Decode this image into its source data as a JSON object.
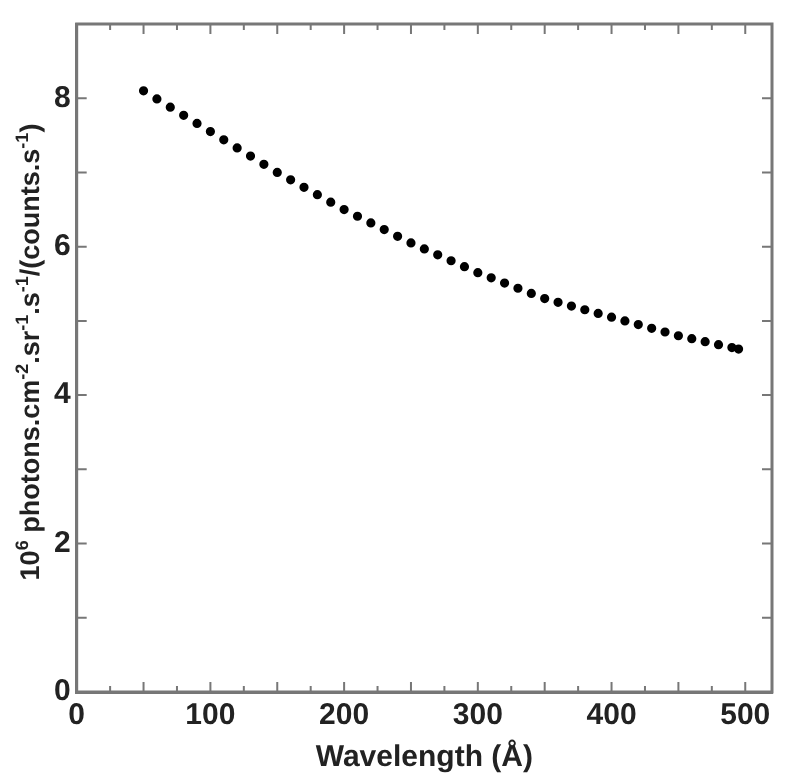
{
  "chart_data": {
    "type": "scatter",
    "xlabel": "Wavelength (Å)",
    "ylabel": "10$^{6}$ photons.cm$^{-2}$.sr$^{-1}$.s$^{-1}$/(counts.s$^{-1}$)",
    "x": [
      50,
      60,
      70,
      80,
      90,
      100,
      110,
      120,
      130,
      140,
      150,
      160,
      170,
      180,
      190,
      200,
      210,
      220,
      230,
      240,
      250,
      260,
      270,
      280,
      290,
      300,
      310,
      320,
      330,
      340,
      350,
      360,
      370,
      380,
      390,
      400,
      410,
      420,
      430,
      440,
      450,
      460,
      470,
      480,
      490,
      495
    ],
    "series": [
      {
        "color": "#000000",
        "values": [
          8.1,
          7.99,
          7.88,
          7.77,
          7.66,
          7.55,
          7.44,
          7.33,
          7.22,
          7.11,
          7.0,
          6.9,
          6.8,
          6.7,
          6.6,
          6.5,
          6.41,
          6.32,
          6.23,
          6.14,
          6.05,
          5.97,
          5.89,
          5.81,
          5.73,
          5.65,
          5.58,
          5.51,
          5.44,
          5.37,
          5.3,
          5.25,
          5.2,
          5.15,
          5.1,
          5.05,
          5.0,
          4.95,
          4.9,
          4.85,
          4.8,
          4.76,
          4.72,
          4.68,
          4.64,
          4.62
        ]
      }
    ],
    "marker": "circle",
    "grid": false,
    "legend": false,
    "xlim": [
      0,
      520
    ],
    "xticks": [
      0,
      {
        "value": 50,
        "label": null
      },
      100,
      {
        "value": 150,
        "label": null
      },
      200,
      {
        "value": 250,
        "label": null
      },
      300,
      {
        "value": 350,
        "label": null
      },
      400,
      {
        "value": 450,
        "label": null
      },
      500
    ],
    "ylim": [
      0,
      9
    ],
    "yticks": [
      0,
      {
        "value": 1,
        "label": null
      },
      2,
      {
        "value": 3,
        "label": null
      },
      4,
      {
        "value": 5,
        "label": null
      },
      6,
      {
        "value": 7,
        "label": null
      },
      8
    ]
  }
}
